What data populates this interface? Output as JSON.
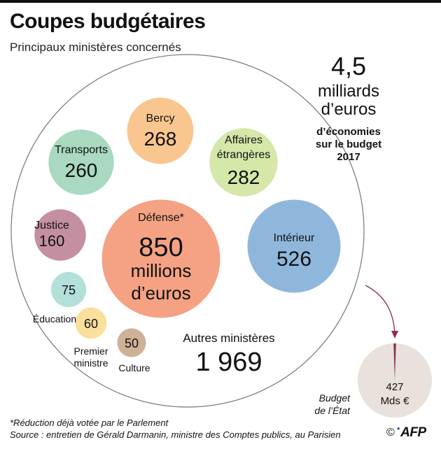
{
  "title": "Coupes budgétaires",
  "subtitle": "Principaux ministères concernés",
  "chart_data": {
    "type": "bubble",
    "title": "Coupes budgétaires",
    "subtitle": "Principaux ministères concernés",
    "unit": "millions d'euros",
    "categories": [
      "Défense",
      "Intérieur",
      "Affaires étrangères",
      "Bercy",
      "Transports",
      "Justice",
      "Éducation",
      "Premier ministre",
      "Culture"
    ],
    "values": [
      850,
      526,
      282,
      268,
      260,
      160,
      75,
      60,
      50
    ],
    "display_values": [
      "850",
      "526",
      "282",
      "268",
      "260",
      "160",
      "75",
      "60",
      "50"
    ],
    "colors": [
      "#f4a283",
      "#8fb7dc",
      "#d5e7a9",
      "#f9c68f",
      "#a9d9c0",
      "#c48fa1",
      "#b3e0d9",
      "#fbe09d",
      "#cfb197"
    ],
    "defense_label": "Défense*",
    "defense_value_lines": [
      "850",
      "millions",
      "d’euros"
    ],
    "other": {
      "label": "Autres ministères",
      "value": 1969,
      "display": "1 969"
    },
    "total": {
      "value": "4,5",
      "lines": [
        "milliards",
        "d’euros"
      ],
      "caption": [
        "d’économies",
        "sur le budget",
        "2017"
      ],
      "color": "#8a2d5c"
    },
    "state_budget": {
      "label": [
        "Budget",
        "de l’État"
      ],
      "value": 427,
      "display": [
        "427",
        "Mds €"
      ]
    }
  },
  "footnote": "*Réduction déjà votée par le Parlement",
  "source": "Source : entretien de Gérald Darmanin, ministre des Comptes publics, au Parisien",
  "credit": {
    "copyright": "©",
    "logo": "AFP"
  }
}
